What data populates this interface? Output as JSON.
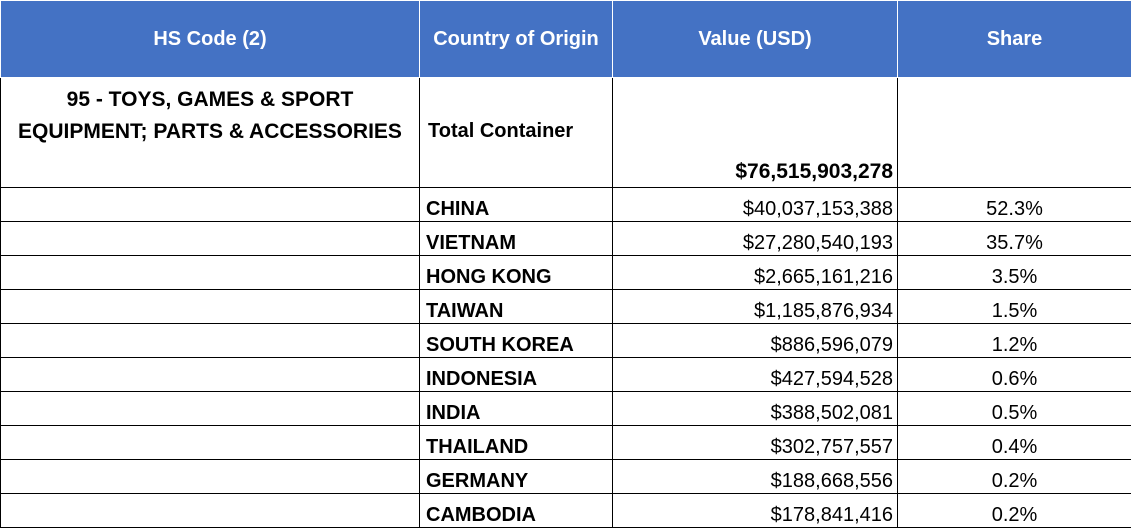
{
  "headers": {
    "hs_code": "HS Code (2)",
    "country": "Country of Origin",
    "value": "Value (USD)",
    "share": "Share"
  },
  "summary": {
    "hs_code": "95 - TOYS, GAMES & SPORT EQUIPMENT; PARTS & ACCESSORIES",
    "country": "Total Container",
    "value": "$76,515,903,278",
    "share": ""
  },
  "rows": [
    {
      "country": "CHINA",
      "value": "$40,037,153,388",
      "share": "52.3%"
    },
    {
      "country": "VIETNAM",
      "value": "$27,280,540,193",
      "share": "35.7%"
    },
    {
      "country": "HONG KONG",
      "value": "$2,665,161,216",
      "share": "3.5%"
    },
    {
      "country": "TAIWAN",
      "value": "$1,185,876,934",
      "share": "1.5%"
    },
    {
      "country": "SOUTH KOREA",
      "value": "$886,596,079",
      "share": "1.2%"
    },
    {
      "country": "INDONESIA",
      "value": "$427,594,528",
      "share": "0.6%"
    },
    {
      "country": "INDIA",
      "value": "$388,502,081",
      "share": "0.5%"
    },
    {
      "country": "THAILAND",
      "value": "$302,757,557",
      "share": "0.4%"
    },
    {
      "country": "GERMANY",
      "value": "$188,668,556",
      "share": "0.2%"
    },
    {
      "country": "CAMBODIA",
      "value": "$178,841,416",
      "share": "0.2%"
    }
  ],
  "colors": {
    "header_background": "#4472C4",
    "header_text": "#FFFFFF",
    "border": "#000000"
  }
}
